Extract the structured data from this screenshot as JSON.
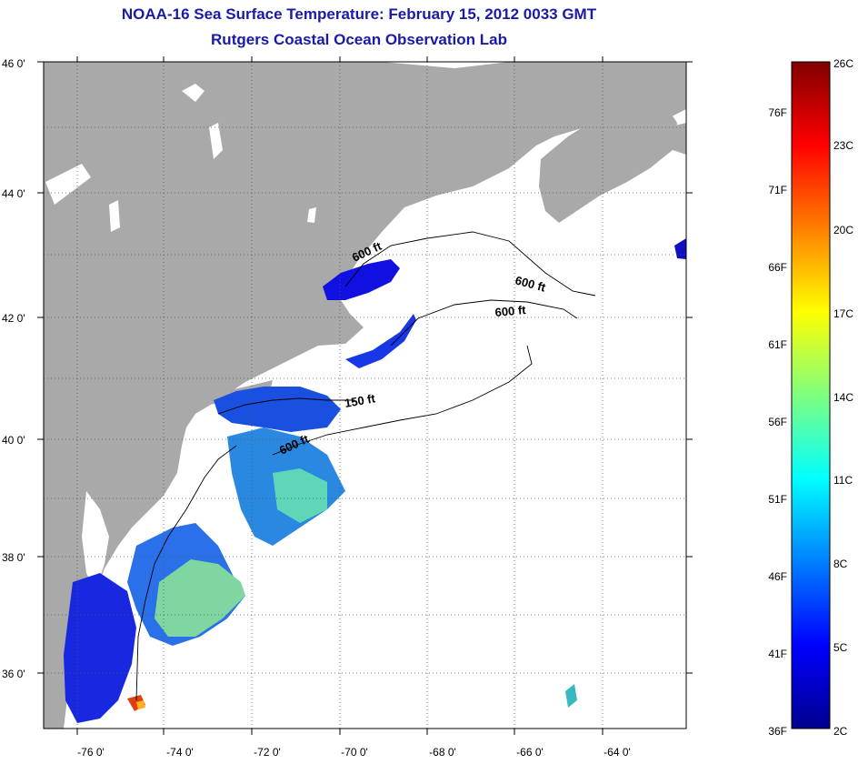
{
  "header": {
    "title": "NOAA-16 Sea Surface Temperature:  February 15, 2012 0033 GMT",
    "subtitle": "Rutgers Coastal Ocean Observation Lab"
  },
  "map": {
    "lon_ticks": [
      "-76 0'",
      "-74 0'",
      "-72 0'",
      "-70 0'",
      "-68 0'",
      "-66 0'",
      "-64 0'"
    ],
    "lat_ticks": [
      "46 0'",
      "44 0'",
      "42 0'",
      "40 0'",
      "38 0'",
      "36 0'"
    ],
    "contour_labels": [
      "600 ft",
      "600 ft",
      "600 ft",
      "150 ft",
      "600 ft"
    ],
    "colors": {
      "land": "#a9a9a9",
      "ocean_nodata": "#ffffff",
      "title": "#1a1aa8"
    }
  },
  "colorbar": {
    "fahrenheit": [
      "76F",
      "71F",
      "66F",
      "61F",
      "56F",
      "51F",
      "46F",
      "41F",
      "36F"
    ],
    "celsius": [
      "26C",
      "23C",
      "20C",
      "17C",
      "14C",
      "11C",
      "8C",
      "5C",
      "2C"
    ]
  }
}
